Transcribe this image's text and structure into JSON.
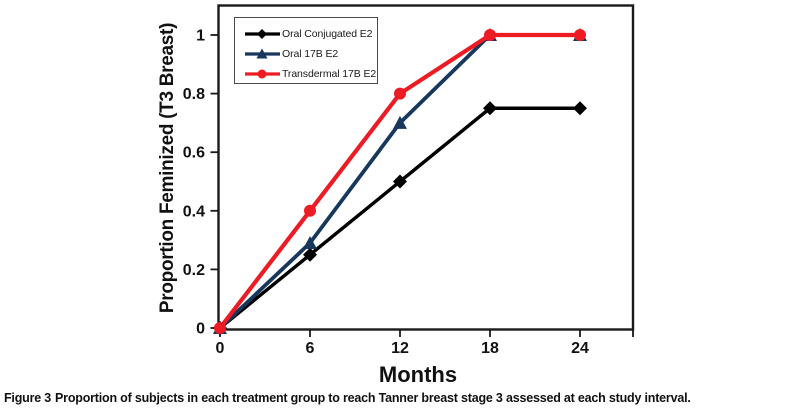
{
  "figure": {
    "caption_prefix": "Figure 3",
    "caption_text": "Proportion of subjects in each treatment group to reach Tanner breast stage 3 assessed at each study interval."
  },
  "chart_data": {
    "type": "line",
    "title": "",
    "xlabel": "Months",
    "ylabel": "Proportion Feminized (T3 Breast)",
    "x": [
      0,
      6,
      12,
      18,
      24
    ],
    "xticks": [
      0,
      6,
      12,
      18,
      24
    ],
    "yticks": [
      0,
      0.2,
      0.4,
      0.6,
      0.8,
      1
    ],
    "ytick_labels": [
      "0",
      "0.2",
      "0.4",
      "0.6",
      "0.8",
      "1"
    ],
    "xlim": [
      0,
      27.7
    ],
    "ylim": [
      0,
      1.11
    ],
    "grid": false,
    "legend_position": "inside-top-left",
    "series": [
      {
        "name": "Oral Conjugated E2",
        "color": "#000000",
        "marker": "diamond",
        "values": [
          0,
          0.25,
          0.5,
          0.75,
          0.75
        ]
      },
      {
        "name": "Oral 17B E2",
        "color": "#17375C",
        "marker": "triangle",
        "values": [
          0,
          0.29,
          0.7,
          1,
          1
        ]
      },
      {
        "name": "Transdermal 17B E2",
        "color": "#ED1C24",
        "marker": "circle",
        "values": [
          0,
          0.4,
          0.8,
          1,
          1
        ]
      }
    ]
  }
}
